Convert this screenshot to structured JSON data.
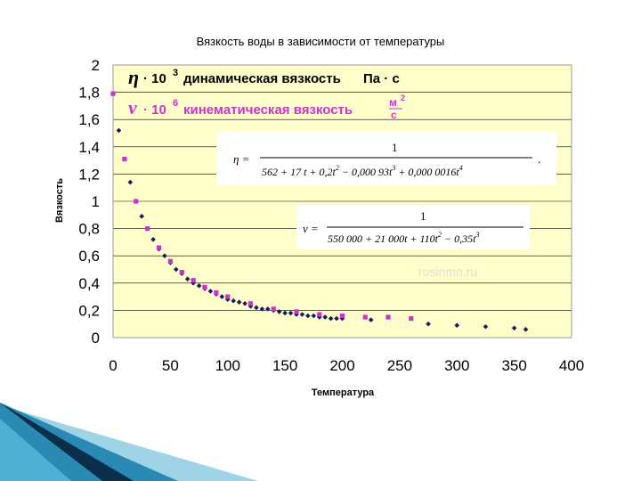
{
  "chart_data": {
    "type": "scatter",
    "title": "Вязкость воды в зависимости от температуры",
    "xlabel": "Температура",
    "ylabel": "Вязкость",
    "xlim": [
      0,
      400
    ],
    "ylim": [
      0,
      2
    ],
    "xticks": [
      "0",
      "50",
      "100",
      "150",
      "200",
      "250",
      "300",
      "350",
      "400"
    ],
    "yticks": [
      "0",
      "0,2",
      "0,4",
      "0,6",
      "0,8",
      "1",
      "1,2",
      "1,4",
      "1,6",
      "1,8",
      "2"
    ],
    "grid": true,
    "series": [
      {
        "name": "η · 10³ динамическая вязкость Па · с",
        "color": "#1a1a5e",
        "marker": "diamond",
        "x": [
          0,
          5,
          10,
          15,
          20,
          25,
          30,
          35,
          40,
          45,
          50,
          55,
          60,
          65,
          70,
          75,
          80,
          85,
          90,
          95,
          100,
          105,
          110,
          115,
          120,
          125,
          130,
          135,
          140,
          145,
          150,
          155,
          160,
          165,
          170,
          175,
          180,
          185,
          190,
          195,
          200,
          225,
          275,
          300,
          325,
          350,
          360
        ],
        "y": [
          1.79,
          1.52,
          1.31,
          1.14,
          1.0,
          0.89,
          0.8,
          0.72,
          0.65,
          0.6,
          0.55,
          0.5,
          0.47,
          0.43,
          0.4,
          0.38,
          0.36,
          0.34,
          0.32,
          0.3,
          0.28,
          0.27,
          0.26,
          0.25,
          0.23,
          0.22,
          0.21,
          0.21,
          0.2,
          0.19,
          0.18,
          0.18,
          0.17,
          0.17,
          0.16,
          0.16,
          0.15,
          0.15,
          0.14,
          0.14,
          0.14,
          0.13,
          0.1,
          0.09,
          0.08,
          0.07,
          0.06
        ]
      },
      {
        "name": "ν · 10⁶ кинематическая вязкость м²/с",
        "color": "#cc33cc",
        "marker": "square",
        "x": [
          0,
          10,
          20,
          30,
          40,
          50,
          60,
          70,
          80,
          90,
          100,
          120,
          140,
          160,
          180,
          200,
          220,
          240,
          260
        ],
        "y": [
          1.79,
          1.31,
          1.0,
          0.8,
          0.66,
          0.56,
          0.48,
          0.42,
          0.37,
          0.33,
          0.3,
          0.25,
          0.21,
          0.19,
          0.17,
          0.16,
          0.15,
          0.15,
          0.14
        ]
      }
    ],
    "legend": {
      "eta_symbol": "η",
      "eta_mult": "· 10",
      "eta_exp": "3",
      "eta_text": "динамическая вязкость",
      "eta_unit": "Па · с",
      "nu_symbol": "ν",
      "nu_mult": "· 10",
      "nu_exp": "6",
      "nu_text": "кинематическая вязкость",
      "nu_unit_num": "м",
      "nu_unit_sup": "2",
      "nu_unit_den": "с"
    },
    "formula_eta": {
      "lhs": "η =",
      "numerator": "1",
      "denominator": "562 + 17 t + 0,2t",
      "den_tail": " − 0,000 93t",
      "den_tail2": " + 0,000 0016t",
      "exp2": "2",
      "exp3": "3",
      "exp4": "4",
      "trail": "."
    },
    "formula_nu": {
      "lhs": "ν =",
      "numerator": "1",
      "denominator": "550 000 + 21 000t + 110t",
      "den_tail": " − 0,35t",
      "exp2": "2",
      "exp3": "3"
    },
    "watermark": "rosinmn.ru",
    "plot_bg": "#ffffcc",
    "grid_color": "#000000"
  }
}
